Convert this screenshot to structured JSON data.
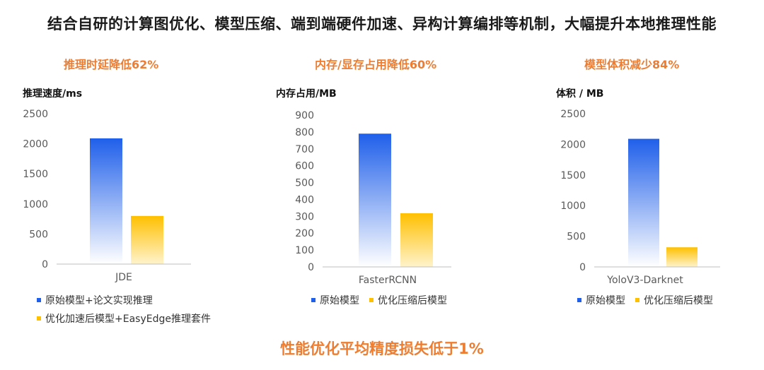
{
  "headline": "结合自研的计算图优化、模型压缩、端到端硬件加速、异构计算编排等机制，大幅提升本地推理性能",
  "footer": "性能优化平均精度损失低于1%",
  "colors": {
    "accent": "#ed7d31",
    "bar_primary_top": "#1f5fea",
    "bar_primary_bottom": "#ffffff",
    "bar_secondary_top": "#ffc000",
    "bar_secondary_bottom": "#fff3cc",
    "axis": "#bfbfbf",
    "tick_text": "#595959"
  },
  "chart_data": [
    {
      "type": "bar",
      "title": "推理时延降低62%",
      "ylabel": "推理速度/ms",
      "xlabel": "",
      "ylim": [
        0,
        2500
      ],
      "yticks": [
        0,
        500,
        1000,
        1500,
        2000,
        2500
      ],
      "categories": [
        "JDE"
      ],
      "series": [
        {
          "name": "原始模型+论文实现推理",
          "values": [
            2090
          ]
        },
        {
          "name": "优化加速后模型+EasyEdge推理套件",
          "values": [
            800
          ]
        }
      ],
      "grid": false,
      "legend": "bottom-left"
    },
    {
      "type": "bar",
      "title": "内存/显存占用降低60%",
      "ylabel": "内存占用/MB",
      "xlabel": "",
      "ylim": [
        0,
        900
      ],
      "yticks": [
        0,
        100,
        200,
        300,
        400,
        500,
        600,
        700,
        800,
        900
      ],
      "categories": [
        "FasterRCNN"
      ],
      "series": [
        {
          "name": "原始模型",
          "values": [
            790
          ]
        },
        {
          "name": "优化压缩后模型",
          "values": [
            318
          ]
        }
      ],
      "grid": false,
      "legend": "bottom-left"
    },
    {
      "type": "bar",
      "title": "模型体积减少84%",
      "ylabel": "体积 / MB",
      "xlabel": "",
      "ylim": [
        0,
        2500
      ],
      "yticks": [
        0,
        500,
        1000,
        1500,
        2000,
        2500
      ],
      "categories": [
        "YoloV3-Darknet"
      ],
      "series": [
        {
          "name": "原始模型",
          "values": [
            2090
          ]
        },
        {
          "name": "优化压缩后模型",
          "values": [
            320
          ]
        }
      ],
      "grid": false,
      "legend": "bottom-left"
    }
  ]
}
